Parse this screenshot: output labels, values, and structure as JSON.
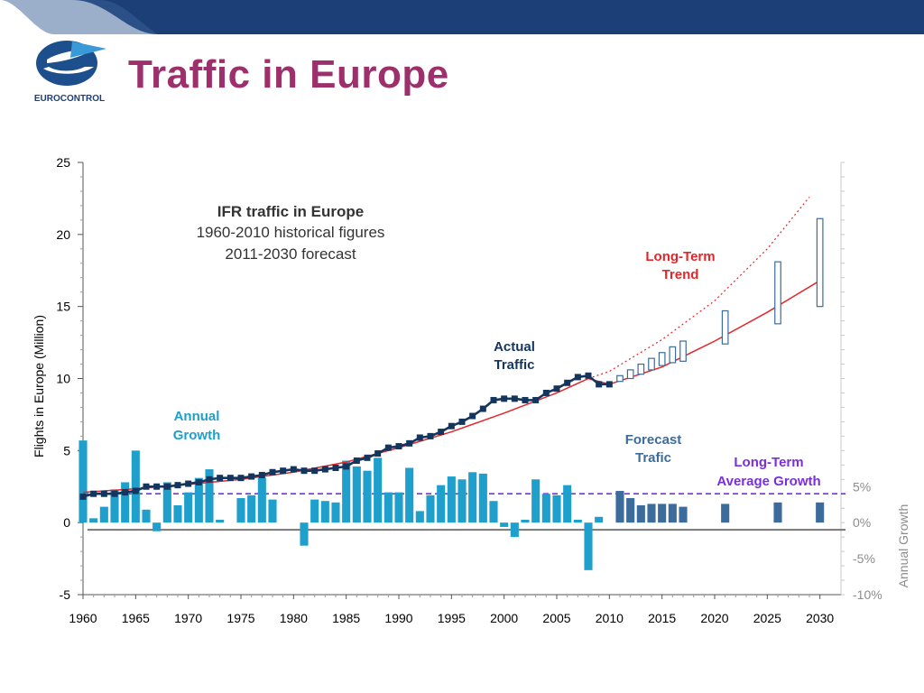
{
  "header": {
    "title": "Traffic in Europe",
    "logo_text": "EUROCONTROL"
  },
  "colors": {
    "title": "#9c2f6c",
    "header_band": "#1c3f78",
    "actual": "#14365e",
    "historical_growth": "#1fa0cc",
    "forecast_growth": "#3c6c9c",
    "trend": "#e3262a",
    "avg_growth": "#7b2ee0"
  },
  "chart_data": {
    "type": "bar+line",
    "ylabel": "Flights in Europe (Million)",
    "y2label": "Annual Growth",
    "ylim": [
      -5,
      25
    ],
    "yticks": [
      -5,
      0,
      5,
      10,
      15,
      20,
      25
    ],
    "y2_ticks": [
      {
        "label": "5%",
        "left_value": 2.5
      },
      {
        "label": "0%",
        "left_value": 0
      },
      {
        "label": "-5%",
        "left_value": -2.5
      },
      {
        "label": "-10%",
        "left_value": -5
      }
    ],
    "xlim": [
      1960,
      2032
    ],
    "xticks": [
      1960,
      1965,
      1970,
      1975,
      1980,
      1985,
      1990,
      1995,
      2000,
      2005,
      2010,
      2015,
      2020,
      2025,
      2030
    ],
    "growth_baseline": -0.5,
    "box_title": "IFR traffic in Europe",
    "box_line1": "1960-2010 historical figures",
    "box_line2": "2011-2030 forecast",
    "annotations": {
      "actual": [
        "Actual",
        "Traffic"
      ],
      "annual_growth": [
        "Annual",
        "Growth"
      ],
      "forecast": [
        "Forecast",
        "Trafic"
      ],
      "long_term_trend": [
        "Long-Term",
        "Trend"
      ],
      "long_term_avg": [
        "Long-Term",
        "Average Growth"
      ]
    },
    "actual_traffic": {
      "years": [
        1960,
        1961,
        1962,
        1963,
        1964,
        1965,
        1966,
        1967,
        1968,
        1969,
        1970,
        1971,
        1972,
        1973,
        1974,
        1975,
        1976,
        1977,
        1978,
        1979,
        1980,
        1981,
        1982,
        1983,
        1984,
        1985,
        1986,
        1987,
        1988,
        1989,
        1990,
        1991,
        1992,
        1993,
        1994,
        1995,
        1996,
        1997,
        1998,
        1999,
        2000,
        2001,
        2002,
        2003,
        2004,
        2005,
        2006,
        2007,
        2008,
        2009,
        2010
      ],
      "values": [
        1.8,
        2.0,
        2.0,
        2.0,
        2.1,
        2.2,
        2.5,
        2.5,
        2.5,
        2.6,
        2.7,
        2.8,
        3.0,
        3.1,
        3.1,
        3.1,
        3.2,
        3.3,
        3.5,
        3.6,
        3.7,
        3.6,
        3.6,
        3.7,
        3.8,
        3.9,
        4.3,
        4.5,
        4.8,
        5.2,
        5.3,
        5.5,
        5.9,
        6.0,
        6.3,
        6.7,
        7.0,
        7.4,
        7.9,
        8.5,
        8.6,
        8.6,
        8.5,
        8.5,
        9.0,
        9.3,
        9.7,
        10.1,
        10.2,
        9.6,
        9.6
      ]
    },
    "trend_line": {
      "years": [
        1960,
        1965,
        1970,
        1975,
        1980,
        1985,
        1990,
        1995,
        2000,
        2005,
        2008,
        2010,
        2015,
        2020,
        2025,
        2030
      ],
      "values": [
        2.1,
        2.35,
        2.65,
        3.0,
        3.5,
        4.2,
        5.2,
        6.3,
        7.6,
        9.0,
        10.0,
        9.6,
        10.8,
        12.6,
        14.6,
        16.8
      ]
    },
    "trend_high": {
      "years": [
        2008,
        2010,
        2015,
        2020,
        2025,
        2029
      ],
      "values": [
        10.0,
        10.5,
        12.7,
        15.4,
        19.0,
        22.6
      ]
    },
    "forecast_ranges": {
      "years": [
        2011,
        2012,
        2013,
        2014,
        2015,
        2016,
        2017,
        2021,
        2026,
        2030
      ],
      "low": [
        9.8,
        10.0,
        10.3,
        10.6,
        10.9,
        11.1,
        11.2,
        12.4,
        13.8,
        15.0
      ],
      "high": [
        10.2,
        10.6,
        11.0,
        11.4,
        11.8,
        12.2,
        12.6,
        14.7,
        18.1,
        21.1
      ]
    },
    "historical_growth": {
      "years": [
        1960,
        1961,
        1962,
        1963,
        1964,
        1965,
        1966,
        1967,
        1968,
        1969,
        1970,
        1971,
        1972,
        1973,
        1974,
        1975,
        1976,
        1977,
        1978,
        1979,
        1980,
        1981,
        1982,
        1983,
        1984,
        1985,
        1986,
        1987,
        1988,
        1989,
        1990,
        1991,
        1992,
        1993,
        1994,
        1995,
        1996,
        1997,
        1998,
        1999,
        2000,
        2001,
        2002,
        2003,
        2004,
        2005,
        2006,
        2007,
        2008,
        2009,
        2010
      ],
      "values": [
        5.7,
        0.3,
        1.1,
        2.3,
        2.8,
        5.0,
        0.9,
        -0.6,
        2.8,
        1.2,
        2.1,
        3.1,
        3.7,
        0.2,
        0.0,
        1.7,
        1.9,
        3.1,
        1.6,
        0.0,
        0.0,
        -1.6,
        1.6,
        1.5,
        1.4,
        4.3,
        3.9,
        3.6,
        4.5,
        2.1,
        2.1,
        3.8,
        0.8,
        1.9,
        2.6,
        3.2,
        3.0,
        3.5,
        3.4,
        1.5,
        -0.3,
        -1.0,
        0.2,
        3.0,
        2.0,
        1.9,
        2.6,
        0.2,
        -3.3,
        0.4,
        0.0
      ]
    },
    "forecast_growth": {
      "years": [
        2011,
        2012,
        2013,
        2014,
        2015,
        2016,
        2017,
        2021,
        2026,
        2030
      ],
      "values": [
        2.2,
        1.7,
        1.2,
        1.3,
        1.3,
        1.3,
        1.1,
        1.3,
        1.4,
        1.4
      ]
    },
    "avg_growth_level": 2.0
  }
}
